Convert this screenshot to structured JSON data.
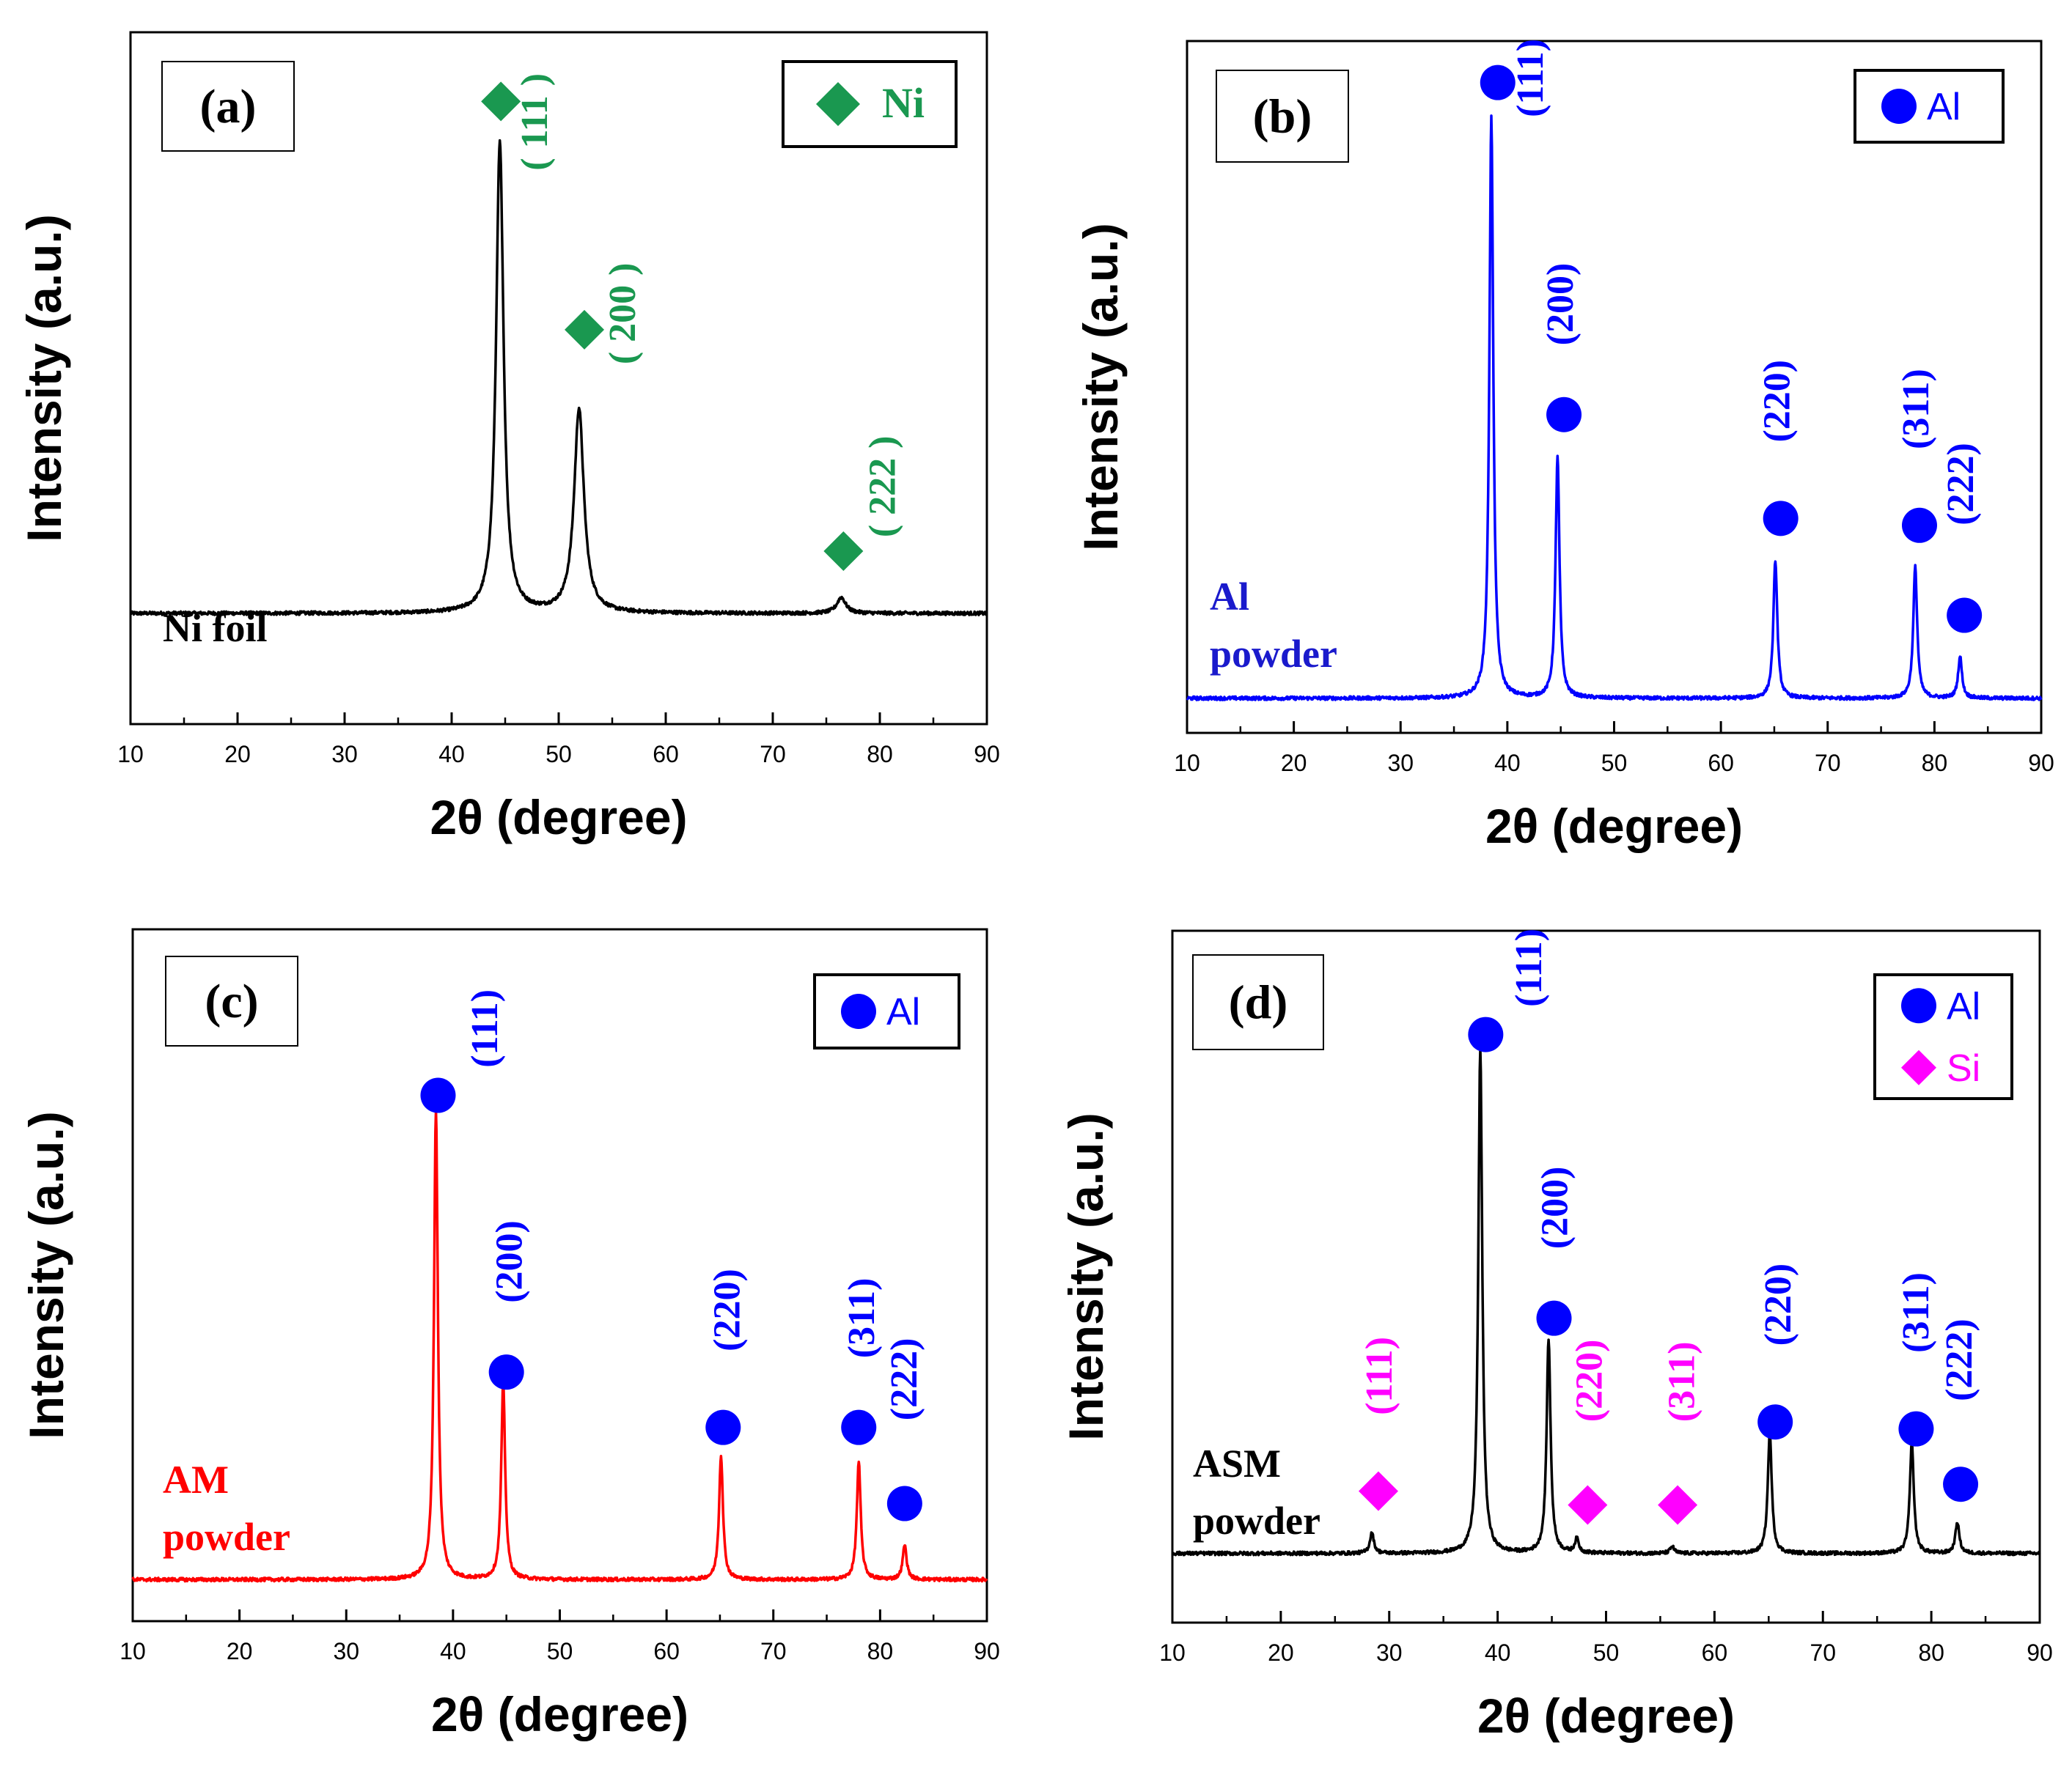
{
  "figure": {
    "description_free": true
  },
  "chart_data": [
    {
      "id": "a",
      "type": "line",
      "panel_label": "(a)",
      "sample_label": "Ni foil",
      "sample_color": "#000000",
      "line_color": "#000000",
      "xlabel": "2θ (degree)",
      "ylabel": "Intensity (a.u.)",
      "xlim": [
        10,
        90
      ],
      "ylim": [
        0,
        100
      ],
      "xticks": [
        10,
        20,
        30,
        40,
        50,
        60,
        70,
        80,
        90
      ],
      "xtick_labels": [
        "10",
        "20",
        "30",
        "40",
        "50",
        "60",
        "70",
        "80",
        "90"
      ],
      "baseline": 16,
      "peaks": [
        {
          "pos": 44.5,
          "height": 68,
          "width": 0.42
        },
        {
          "pos": 51.9,
          "height": 29.5,
          "width": 0.55
        },
        {
          "pos": 76.4,
          "height": 2.3,
          "width": 0.5
        }
      ],
      "noise": 0.25,
      "legend": [
        {
          "symbol": "diamond",
          "color": "#1a9850",
          "label": "Ni",
          "label_color": "#1a9850"
        }
      ],
      "legend_font": "serif",
      "markers": [
        {
          "symbol": "diamond",
          "color": "#1a9850",
          "x": 44.6,
          "y": 90
        },
        {
          "symbol": "diamond",
          "color": "#1a9850",
          "x": 52.4,
          "y": 57
        },
        {
          "symbol": "diamond",
          "color": "#1a9850",
          "x": 76.6,
          "y": 25
        }
      ],
      "annotations": [
        {
          "text": "( 111 )",
          "color": "#1a9850",
          "x": 48.1,
          "y": 80
        },
        {
          "text": "( 200 )",
          "color": "#1a9850",
          "x": 56.3,
          "y": 52
        },
        {
          "text": "( 222 )",
          "color": "#1a9850",
          "x": 80.6,
          "y": 27
        }
      ]
    },
    {
      "id": "b",
      "type": "line",
      "panel_label": "(b)",
      "sample_label": "Al\npowder",
      "sample_color": "#1a1acc",
      "line_color": "#0000ff",
      "xlabel": "2θ (degree)",
      "ylabel": "Intensity (a.u.)",
      "xlim": [
        10,
        90
      ],
      "ylim": [
        0,
        100
      ],
      "xticks": [
        10,
        20,
        30,
        40,
        50,
        60,
        70,
        80,
        90
      ],
      "xtick_labels": [
        "10",
        "20",
        "30",
        "40",
        "50",
        "60",
        "70",
        "80",
        "90"
      ],
      "baseline": 5,
      "peaks": [
        {
          "pos": 38.5,
          "height": 84,
          "width": 0.22
        },
        {
          "pos": 44.7,
          "height": 35,
          "width": 0.22
        },
        {
          "pos": 65.1,
          "height": 20,
          "width": 0.22
        },
        {
          "pos": 78.2,
          "height": 19,
          "width": 0.22
        },
        {
          "pos": 82.4,
          "height": 6,
          "width": 0.22
        }
      ],
      "noise": 0.25,
      "legend": [
        {
          "symbol": "circle",
          "color": "#0000ff",
          "label": "Al",
          "label_color": "#0000ff"
        }
      ],
      "legend_font": "sans",
      "markers": [
        {
          "symbol": "circle",
          "color": "#0000ff",
          "x": 39.1,
          "y": 94
        },
        {
          "symbol": "circle",
          "color": "#0000ff",
          "x": 45.3,
          "y": 46
        },
        {
          "symbol": "circle",
          "color": "#0000ff",
          "x": 65.6,
          "y": 31
        },
        {
          "symbol": "circle",
          "color": "#0000ff",
          "x": 78.6,
          "y": 30
        },
        {
          "symbol": "circle",
          "color": "#0000ff",
          "x": 82.8,
          "y": 17
        }
      ],
      "annotations": [
        {
          "text": "(111)",
          "color": "#0000ff",
          "x": 42.5,
          "y": 89
        },
        {
          "text": "(200)",
          "color": "#0000ff",
          "x": 45.3,
          "y": 56
        },
        {
          "text": "(220)",
          "color": "#0000ff",
          "x": 65.6,
          "y": 42
        },
        {
          "text": "(311)",
          "color": "#0000ff",
          "x": 78.6,
          "y": 41
        },
        {
          "text": "(222)",
          "color": "#0000ff",
          "x": 82.8,
          "y": 30
        }
      ]
    },
    {
      "id": "c",
      "type": "line",
      "panel_label": "(c)",
      "sample_label": "AM\npowder",
      "sample_color": "#ff0000",
      "line_color": "#ff0000",
      "xlabel": "2θ (degree)",
      "ylabel": "Intensity (a.u.)",
      "xlim": [
        10,
        90
      ],
      "ylim": [
        0,
        100
      ],
      "xticks": [
        10,
        20,
        30,
        40,
        50,
        60,
        70,
        80,
        90
      ],
      "xtick_labels": [
        "10",
        "20",
        "30",
        "40",
        "50",
        "60",
        "70",
        "80",
        "90"
      ],
      "baseline": 6,
      "peaks": [
        {
          "pos": 38.4,
          "height": 68,
          "width": 0.22
        },
        {
          "pos": 44.7,
          "height": 28.5,
          "width": 0.22
        },
        {
          "pos": 65.1,
          "height": 18,
          "width": 0.22
        },
        {
          "pos": 78.0,
          "height": 17,
          "width": 0.22
        },
        {
          "pos": 82.3,
          "height": 5,
          "width": 0.22
        }
      ],
      "noise": 0.25,
      "legend": [
        {
          "symbol": "circle",
          "color": "#0000ff",
          "label": "Al",
          "label_color": "#0000ff"
        }
      ],
      "legend_font": "sans",
      "markers": [
        {
          "symbol": "circle",
          "color": "#0000ff",
          "x": 38.6,
          "y": 76
        },
        {
          "symbol": "circle",
          "color": "#0000ff",
          "x": 45.0,
          "y": 36
        },
        {
          "symbol": "circle",
          "color": "#0000ff",
          "x": 65.3,
          "y": 28
        },
        {
          "symbol": "circle",
          "color": "#0000ff",
          "x": 78.0,
          "y": 28
        },
        {
          "symbol": "circle",
          "color": "#0000ff",
          "x": 82.3,
          "y": 17
        }
      ],
      "annotations": [
        {
          "text": "(111)",
          "color": "#0000ff",
          "x": 43.3,
          "y": 80
        },
        {
          "text": "(200)",
          "color": "#0000ff",
          "x": 45.6,
          "y": 46
        },
        {
          "text": "(220)",
          "color": "#0000ff",
          "x": 66.0,
          "y": 39
        },
        {
          "text": "(311)",
          "color": "#0000ff",
          "x": 78.6,
          "y": 38
        },
        {
          "text": "(222)",
          "color": "#0000ff",
          "x": 82.6,
          "y": 29
        }
      ]
    },
    {
      "id": "d",
      "type": "line",
      "panel_label": "(d)",
      "sample_label": "ASM\npowder",
      "sample_color": "#000000",
      "line_color": "#000000",
      "xlabel": "2θ (degree)",
      "ylabel": "Intensity (a.u.)",
      "xlim": [
        10,
        90
      ],
      "ylim": [
        0,
        100
      ],
      "xticks": [
        10,
        20,
        30,
        40,
        50,
        60,
        70,
        80,
        90
      ],
      "xtick_labels": [
        "10",
        "20",
        "30",
        "40",
        "50",
        "60",
        "70",
        "80",
        "90"
      ],
      "baseline": 10,
      "peaks": [
        {
          "pos": 28.4,
          "height": 3,
          "width": 0.22
        },
        {
          "pos": 38.4,
          "height": 73,
          "width": 0.22
        },
        {
          "pos": 44.7,
          "height": 31,
          "width": 0.22
        },
        {
          "pos": 47.3,
          "height": 2,
          "width": 0.22
        },
        {
          "pos": 56.1,
          "height": 1,
          "width": 0.22
        },
        {
          "pos": 65.1,
          "height": 17.5,
          "width": 0.22
        },
        {
          "pos": 78.2,
          "height": 16,
          "width": 0.22
        },
        {
          "pos": 82.4,
          "height": 4.5,
          "width": 0.22
        }
      ],
      "noise": 0.25,
      "legend": [
        {
          "symbol": "circle",
          "color": "#0000ff",
          "label": "Al",
          "label_color": "#0000ff"
        },
        {
          "symbol": "diamond",
          "color": "#ff00ff",
          "label": "Si",
          "label_color": "#ff00ff"
        }
      ],
      "legend_font": "sans",
      "markers": [
        {
          "symbol": "diamond",
          "color": "#ff00ff",
          "x": 29.0,
          "y": 19
        },
        {
          "symbol": "circle",
          "color": "#0000ff",
          "x": 38.9,
          "y": 85
        },
        {
          "symbol": "circle",
          "color": "#0000ff",
          "x": 45.2,
          "y": 44
        },
        {
          "symbol": "diamond",
          "color": "#ff00ff",
          "x": 48.3,
          "y": 17
        },
        {
          "symbol": "diamond",
          "color": "#ff00ff",
          "x": 56.6,
          "y": 17
        },
        {
          "symbol": "circle",
          "color": "#0000ff",
          "x": 65.6,
          "y": 29
        },
        {
          "symbol": "circle",
          "color": "#0000ff",
          "x": 78.6,
          "y": 28
        },
        {
          "symbol": "circle",
          "color": "#0000ff",
          "x": 82.7,
          "y": 20
        }
      ],
      "annotations": [
        {
          "text": "(111)",
          "color": "#ff00ff",
          "x": 29.4,
          "y": 30
        },
        {
          "text": "(111)",
          "color": "#0000ff",
          "x": 43.2,
          "y": 89
        },
        {
          "text": "(200)",
          "color": "#0000ff",
          "x": 45.6,
          "y": 54
        },
        {
          "text": "(220)",
          "color": "#ff00ff",
          "x": 48.8,
          "y": 29
        },
        {
          "text": "(311)",
          "color": "#ff00ff",
          "x": 57.3,
          "y": 29
        },
        {
          "text": "(220)",
          "color": "#0000ff",
          "x": 66.2,
          "y": 40
        },
        {
          "text": "(311)",
          "color": "#0000ff",
          "x": 78.9,
          "y": 39
        },
        {
          "text": "(222)",
          "color": "#0000ff",
          "x": 82.9,
          "y": 32
        }
      ]
    }
  ]
}
